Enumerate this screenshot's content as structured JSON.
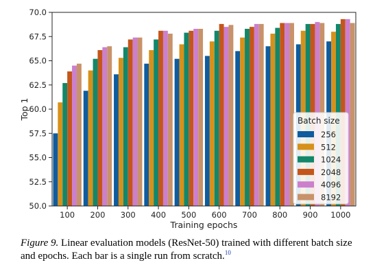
{
  "chart_data": {
    "type": "bar",
    "xlabel": "Training epochs",
    "ylabel": "Top 1",
    "ylim": [
      50.0,
      70.0
    ],
    "yticks": [
      "50.0",
      "52.5",
      "55.0",
      "57.5",
      "60.0",
      "62.5",
      "65.0",
      "67.5",
      "70.0"
    ],
    "categories": [
      "100",
      "200",
      "300",
      "400",
      "500",
      "600",
      "700",
      "800",
      "900",
      "1000"
    ],
    "legend": {
      "title": "Batch size",
      "placement": "lower-right"
    },
    "grid": false,
    "series": [
      {
        "name": "256",
        "color": "#0f5c9e",
        "values": [
          57.5,
          61.9,
          63.6,
          64.7,
          65.2,
          65.5,
          66.0,
          66.5,
          66.7,
          67.0
        ]
      },
      {
        "name": "512",
        "color": "#d6911b",
        "values": [
          60.7,
          64.0,
          65.3,
          66.1,
          66.7,
          67.0,
          67.4,
          67.8,
          68.1,
          68.0
        ]
      },
      {
        "name": "1024",
        "color": "#12876a",
        "values": [
          62.7,
          65.2,
          66.4,
          67.2,
          67.9,
          68.1,
          68.3,
          68.4,
          68.8,
          68.8
        ]
      },
      {
        "name": "2048",
        "color": "#c4561b",
        "values": [
          63.9,
          66.1,
          67.2,
          68.1,
          68.1,
          68.8,
          68.5,
          68.9,
          68.8,
          69.3
        ]
      },
      {
        "name": "4096",
        "color": "#cc7fcc",
        "values": [
          64.5,
          66.4,
          67.4,
          68.1,
          68.3,
          68.5,
          68.8,
          68.9,
          69.0,
          69.3
        ]
      },
      {
        "name": "8192",
        "color": "#c8926a",
        "values": [
          64.7,
          66.5,
          67.4,
          67.8,
          68.3,
          68.7,
          68.8,
          68.9,
          68.9,
          68.9
        ]
      }
    ]
  },
  "caption": {
    "label": "Figure 9.",
    "text": "Linear evaluation models (ResNet-50) trained with different batch size and epochs. Each bar is a single run from scratch.",
    "footnote": "10"
  }
}
